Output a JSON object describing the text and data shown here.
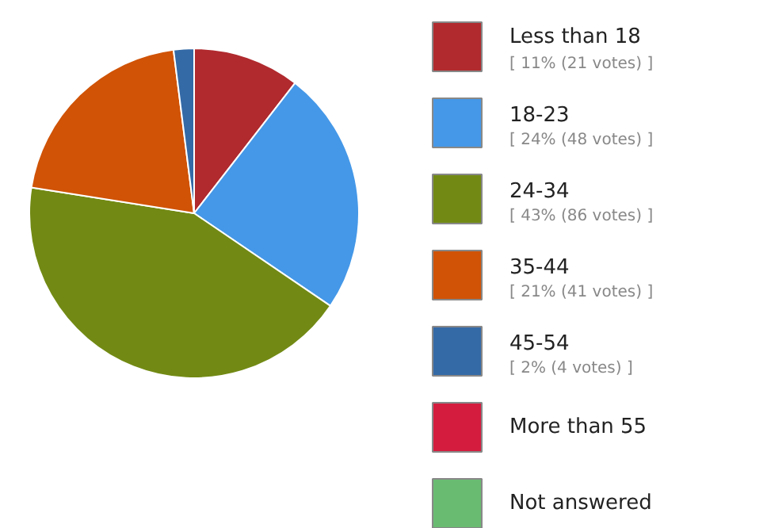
{
  "chart_data": {
    "type": "pie",
    "legend": "right",
    "categories": [
      "Less than 18",
      "18-23",
      "24-34",
      "35-44",
      "45-54",
      "More than 55",
      "Not answered"
    ],
    "values": [
      21,
      48,
      86,
      41,
      4,
      0,
      0
    ],
    "value_labels": [
      "[ 11% (21 votes) ]",
      "[ 24% (48 votes) ]",
      "[ 43% (86 votes) ]",
      "[ 21% (41 votes) ]",
      "[ 2% (4 votes) ]",
      null,
      null
    ],
    "colors": [
      "#b02a2e",
      "#4598e8",
      "#728a14",
      "#d05306",
      "#346aa6",
      "#d41c3e",
      "#6abb72"
    ]
  }
}
